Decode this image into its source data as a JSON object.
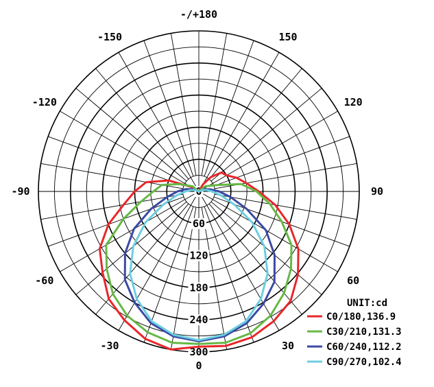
{
  "chart_data": {
    "type": "polar-line",
    "unit_label": "UNIT:cd",
    "radial_axis": {
      "range": [
        0,
        300
      ],
      "ticks": [
        0,
        60,
        120,
        180,
        240,
        300
      ],
      "tick_labels": [
        "0",
        "60",
        "120",
        "180",
        "240",
        "300"
      ],
      "bold_rings": [
        60,
        120,
        180,
        240,
        300
      ],
      "minor_ring_step": 30
    },
    "angular_axis": {
      "zero_direction": "down",
      "direction": "counter-clockwise for positive",
      "spoke_step_deg": 10,
      "labels": [
        {
          "deg": 0,
          "text": "0"
        },
        {
          "deg": 30,
          "text": "30"
        },
        {
          "deg": 60,
          "text": "60"
        },
        {
          "deg": 90,
          "text": "90"
        },
        {
          "deg": 120,
          "text": "120"
        },
        {
          "deg": 150,
          "text": "150"
        },
        {
          "deg": 180,
          "text": "-/+180"
        },
        {
          "deg": -150,
          "text": "-150"
        },
        {
          "deg": -120,
          "text": "-120"
        },
        {
          "deg": -90,
          "text": "-90"
        },
        {
          "deg": -60,
          "text": "-60"
        },
        {
          "deg": -30,
          "text": "-30"
        }
      ]
    },
    "grid": true,
    "legend_position": "bottom-right",
    "series": [
      {
        "name": "C0/180,136.9",
        "color": "#e8262a",
        "points": [
          [
            -120,
            18
          ],
          [
            -110,
            60
          ],
          [
            -100,
            100
          ],
          [
            -90,
            120
          ],
          [
            -80,
            143
          ],
          [
            -70,
            180
          ],
          [
            -60,
            214
          ],
          [
            -50,
            235
          ],
          [
            -40,
            262
          ],
          [
            -30,
            278
          ],
          [
            -20,
            293
          ],
          [
            -10,
            300
          ],
          [
            0,
            290
          ],
          [
            10,
            293
          ],
          [
            20,
            290
          ],
          [
            30,
            280
          ],
          [
            40,
            267
          ],
          [
            50,
            242
          ],
          [
            60,
            215
          ],
          [
            70,
            180
          ],
          [
            80,
            145
          ],
          [
            90,
            112
          ],
          [
            100,
            90
          ],
          [
            110,
            75
          ],
          [
            120,
            60
          ],
          [
            130,
            55
          ],
          [
            140,
            35
          ],
          [
            150,
            15
          ]
        ]
      },
      {
        "name": "C30/210,131.3",
        "color": "#66b845",
        "points": [
          [
            -130,
            15
          ],
          [
            -110,
            40
          ],
          [
            -100,
            70
          ],
          [
            -90,
            85
          ],
          [
            -80,
            110
          ],
          [
            -70,
            150
          ],
          [
            -60,
            200
          ],
          [
            -50,
            225
          ],
          [
            -40,
            250
          ],
          [
            -30,
            268
          ],
          [
            -20,
            280
          ],
          [
            -10,
            287
          ],
          [
            0,
            285
          ],
          [
            10,
            287
          ],
          [
            20,
            282
          ],
          [
            30,
            268
          ],
          [
            40,
            248
          ],
          [
            50,
            225
          ],
          [
            60,
            200
          ],
          [
            70,
            165
          ],
          [
            80,
            135
          ],
          [
            90,
            108
          ],
          [
            100,
            80
          ],
          [
            110,
            35
          ],
          [
            130,
            15
          ]
        ]
      },
      {
        "name": "C60/240,112.2",
        "color": "#3a4aa3",
        "points": [
          [
            -110,
            12
          ],
          [
            -100,
            25
          ],
          [
            -90,
            40
          ],
          [
            -80,
            60
          ],
          [
            -70,
            95
          ],
          [
            -60,
            140
          ],
          [
            -50,
            180
          ],
          [
            -40,
            215
          ],
          [
            -30,
            240
          ],
          [
            -20,
            262
          ],
          [
            -10,
            275
          ],
          [
            0,
            280
          ],
          [
            10,
            275
          ],
          [
            20,
            262
          ],
          [
            30,
            242
          ],
          [
            40,
            220
          ],
          [
            50,
            185
          ],
          [
            60,
            145
          ],
          [
            70,
            95
          ],
          [
            80,
            60
          ],
          [
            90,
            38
          ],
          [
            100,
            22
          ],
          [
            110,
            12
          ]
        ]
      },
      {
        "name": "C90/270,102.4",
        "color": "#6ccfe0",
        "points": [
          [
            -110,
            8
          ],
          [
            -100,
            15
          ],
          [
            -90,
            25
          ],
          [
            -80,
            42
          ],
          [
            -70,
            70
          ],
          [
            -60,
            115
          ],
          [
            -50,
            160
          ],
          [
            -40,
            200
          ],
          [
            -30,
            232
          ],
          [
            -20,
            258
          ],
          [
            -10,
            272
          ],
          [
            0,
            278
          ],
          [
            10,
            272
          ],
          [
            20,
            258
          ],
          [
            30,
            232
          ],
          [
            40,
            200
          ],
          [
            50,
            160
          ],
          [
            60,
            115
          ],
          [
            70,
            70
          ],
          [
            80,
            42
          ],
          [
            90,
            25
          ],
          [
            100,
            15
          ],
          [
            110,
            8
          ]
        ]
      }
    ]
  }
}
